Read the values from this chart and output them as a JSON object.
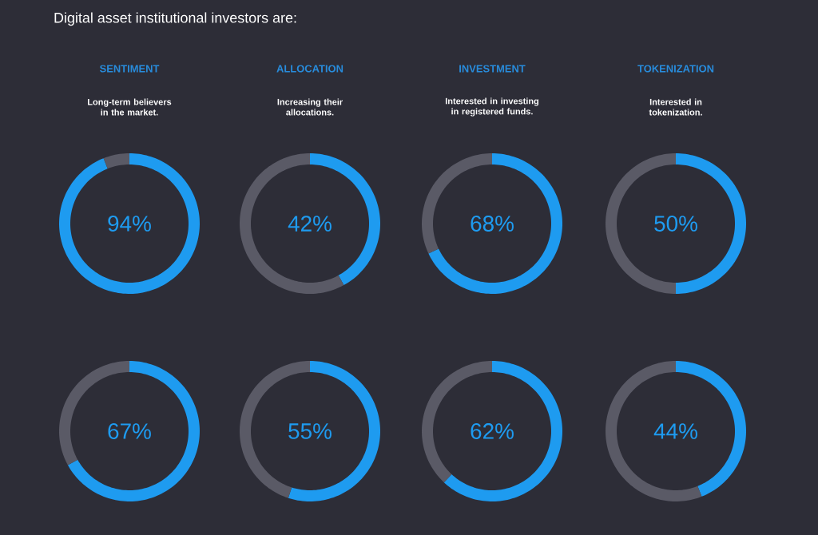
{
  "chart_data": [
    {
      "type": "other",
      "title": "Digital asset institutional investors are:"
    },
    {
      "type": "donut",
      "title": "SENTIMENT",
      "subtitle": "Long-term believers in the market.",
      "categories": [
        null,
        null
      ],
      "values": [
        94,
        6
      ],
      "colors": [
        "#1e9bf0",
        "#5a5a66"
      ],
      "annotations": [
        "94%"
      ]
    },
    {
      "type": "donut",
      "title": "ALLOCATION",
      "subtitle": "Increasing their allocations.",
      "categories": [
        null,
        null
      ],
      "values": [
        42,
        58
      ],
      "colors": [
        "#1e9bf0",
        "#5a5a66"
      ],
      "annotations": [
        "42%"
      ]
    },
    {
      "type": "donut",
      "title": "INVESTMENT",
      "subtitle": "Interested in investing in registered funds.",
      "categories": [
        null,
        null
      ],
      "values": [
        68,
        32
      ],
      "colors": [
        "#1e9bf0",
        "#5a5a66"
      ],
      "annotations": [
        "68%"
      ]
    },
    {
      "type": "donut",
      "title": "TOKENIZATION",
      "subtitle": "Interested in tokenization.",
      "categories": [
        null,
        null
      ],
      "values": [
        50,
        50
      ],
      "colors": [
        "#1e9bf0",
        "#5a5a66"
      ],
      "annotations": [
        "50%"
      ]
    },
    {
      "type": "donut",
      "categories": [
        null,
        null
      ],
      "values": [
        67,
        33
      ],
      "colors": [
        "#1e9bf0",
        "#5a5a66"
      ],
      "annotations": [
        "67%"
      ]
    },
    {
      "type": "donut",
      "categories": [
        null,
        null
      ],
      "values": [
        55,
        45
      ],
      "colors": [
        "#1e9bf0",
        "#5a5a66"
      ],
      "annotations": [
        "55%"
      ]
    },
    {
      "type": "donut",
      "categories": [
        null,
        null
      ],
      "values": [
        62,
        38
      ],
      "colors": [
        "#1e9bf0",
        "#5a5a66"
      ],
      "annotations": [
        "62%"
      ]
    },
    {
      "type": "donut",
      "categories": [
        null,
        null
      ],
      "values": [
        44,
        56
      ],
      "colors": [
        "#1e9bf0",
        "#5a5a66"
      ],
      "annotations": [
        "44%"
      ]
    }
  ]
}
